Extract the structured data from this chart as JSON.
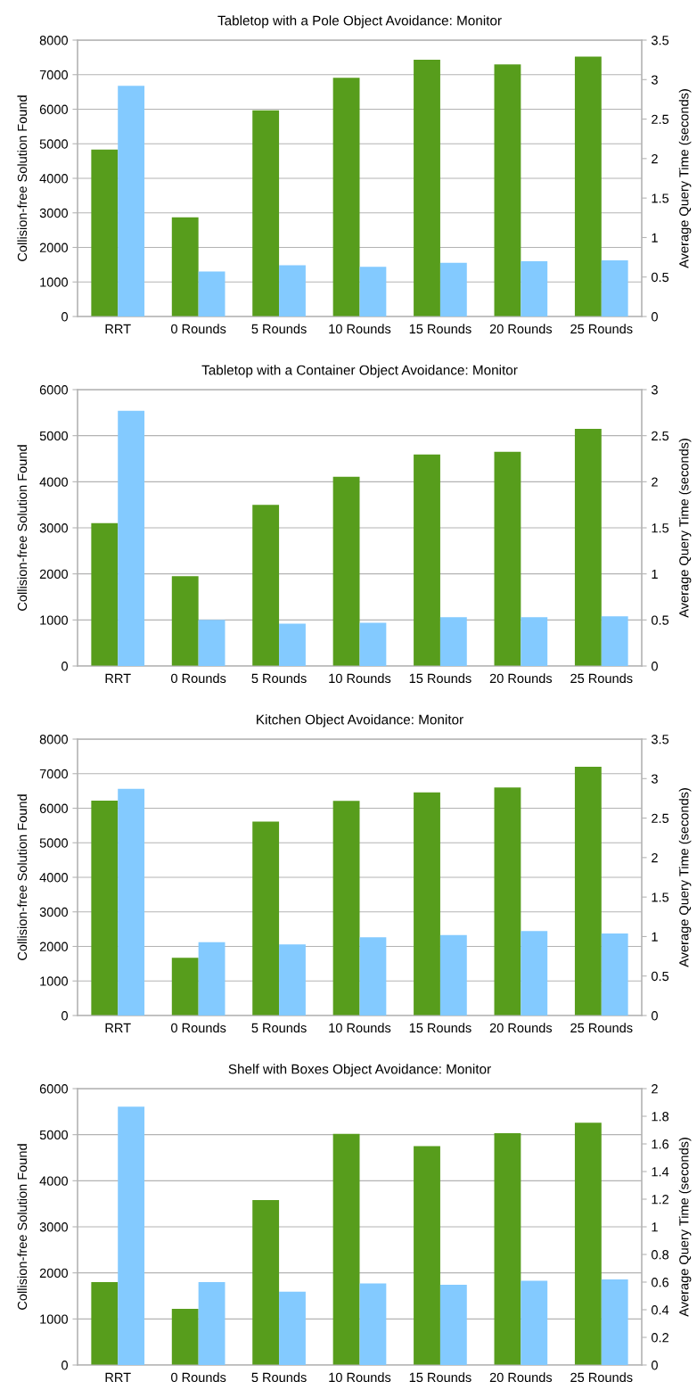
{
  "chart_data": [
    {
      "type": "bar",
      "title": "Tabletop with a Pole Object Avoidance: Monitor",
      "categories": [
        "RRT",
        "0 Rounds",
        "5 Rounds",
        "10 Rounds",
        "15 Rounds",
        "20 Rounds",
        "25 Rounds"
      ],
      "ylabel": "Collision-free Solution Found",
      "y2label": "Average Query Time (seconds)",
      "ylim": [
        0,
        8000
      ],
      "yticks": [
        0,
        1000,
        2000,
        3000,
        4000,
        5000,
        6000,
        7000,
        8000
      ],
      "y2lim": [
        0,
        3.5
      ],
      "y2ticks": [
        0,
        0.5,
        1,
        1.5,
        2,
        2.5,
        3,
        3.5
      ],
      "grid": "y",
      "series": [
        {
          "color": "#579d1c",
          "values": [
            4830,
            2870,
            5970,
            6910,
            7430,
            7300,
            7520
          ]
        },
        {
          "color": "#83caff",
          "axis": "y2",
          "values": [
            2.92,
            0.57,
            0.65,
            0.63,
            0.68,
            0.7,
            0.71
          ]
        }
      ]
    },
    {
      "type": "bar",
      "title": "Tabletop with a Container Object Avoidance: Monitor",
      "categories": [
        "RRT",
        "0 Rounds",
        "5 Rounds",
        "10 Rounds",
        "15 Rounds",
        "20 Rounds",
        "25 Rounds"
      ],
      "ylabel": "Collision-free Solution Found",
      "y2label": "Average Query Time (seconds)",
      "ylim": [
        0,
        6000
      ],
      "yticks": [
        0,
        1000,
        2000,
        3000,
        4000,
        5000,
        6000
      ],
      "y2lim": [
        0,
        3
      ],
      "y2ticks": [
        0,
        0.5,
        1,
        1.5,
        2,
        2.5,
        3
      ],
      "grid": "y",
      "series": [
        {
          "color": "#579d1c",
          "values": [
            3100,
            1950,
            3500,
            4110,
            4590,
            4650,
            5150
          ]
        },
        {
          "color": "#83caff",
          "axis": "y2",
          "values": [
            2.77,
            0.5,
            0.46,
            0.47,
            0.53,
            0.53,
            0.54
          ]
        }
      ]
    },
    {
      "type": "bar",
      "title": "Kitchen Object Avoidance: Monitor",
      "categories": [
        "RRT",
        "0 Rounds",
        "5 Rounds",
        "10 Rounds",
        "15 Rounds",
        "20 Rounds",
        "25 Rounds"
      ],
      "ylabel": "Collision-free Solution Found",
      "y2label": "Average Query Time (seconds)",
      "ylim": [
        0,
        8000
      ],
      "yticks": [
        0,
        1000,
        2000,
        3000,
        4000,
        5000,
        6000,
        7000,
        8000
      ],
      "y2lim": [
        0,
        3.5
      ],
      "y2ticks": [
        0,
        0.5,
        1,
        1.5,
        2,
        2.5,
        3,
        3.5
      ],
      "grid": "y",
      "series": [
        {
          "color": "#579d1c",
          "values": [
            6220,
            1670,
            5610,
            6210,
            6460,
            6600,
            7200
          ]
        },
        {
          "color": "#83caff",
          "axis": "y2",
          "values": [
            2.87,
            0.93,
            0.9,
            0.99,
            1.02,
            1.07,
            1.04
          ]
        }
      ]
    },
    {
      "type": "bar",
      "title": "Shelf with Boxes Object Avoidance: Monitor",
      "categories": [
        "RRT",
        "0 Rounds",
        "5 Rounds",
        "10 Rounds",
        "15 Rounds",
        "20 Rounds",
        "25 Rounds"
      ],
      "ylabel": "Collision-free Solution Found",
      "y2label": "Average Query Time (seconds)",
      "ylim": [
        0,
        6000
      ],
      "yticks": [
        0,
        1000,
        2000,
        3000,
        4000,
        5000,
        6000
      ],
      "y2lim": [
        0,
        2
      ],
      "y2ticks": [
        0,
        0.2,
        0.4,
        0.6,
        0.8,
        1,
        1.2,
        1.4,
        1.6,
        1.8,
        2
      ],
      "grid": "y",
      "series": [
        {
          "color": "#579d1c",
          "values": [
            1800,
            1220,
            3580,
            5020,
            4750,
            5030,
            5260
          ]
        },
        {
          "color": "#83caff",
          "axis": "y2",
          "values": [
            1.87,
            0.6,
            0.53,
            0.59,
            0.58,
            0.61,
            0.62
          ]
        }
      ]
    }
  ]
}
